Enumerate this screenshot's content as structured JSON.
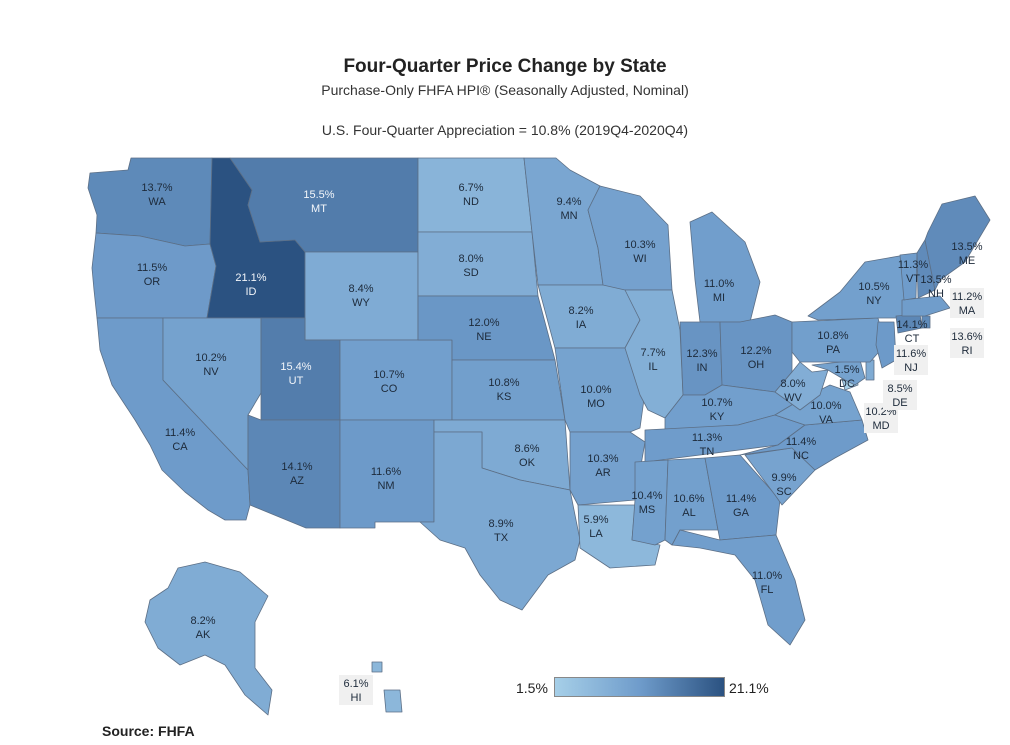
{
  "header": {
    "title": "Four-Quarter Price Change by State",
    "subtitle": "Purchase-Only FHFA HPI® (Seasonally Adjusted, Nominal)",
    "us_appreciation": "U.S. Four-Quarter Appreciation = 10.8% (2019Q4-2020Q4)"
  },
  "legend": {
    "min_label": "1.5%",
    "max_label": "21.1%",
    "min_value": 1.5,
    "max_value": 21.1,
    "colors": [
      "#a6cfe8",
      "#6f9ccb",
      "#2b5281"
    ]
  },
  "source": "Source:  FHFA",
  "states": [
    {
      "abbr": "WA",
      "value": 13.7,
      "label": "13.7%"
    },
    {
      "abbr": "OR",
      "value": 11.5,
      "label": "11.5%"
    },
    {
      "abbr": "CA",
      "value": 11.4,
      "label": "11.4%"
    },
    {
      "abbr": "ID",
      "value": 21.1,
      "label": "21.1%"
    },
    {
      "abbr": "NV",
      "value": 10.2,
      "label": "10.2%"
    },
    {
      "abbr": "MT",
      "value": 15.5,
      "label": "15.5%"
    },
    {
      "abbr": "WY",
      "value": 8.4,
      "label": "8.4%"
    },
    {
      "abbr": "UT",
      "value": 15.4,
      "label": "15.4%"
    },
    {
      "abbr": "AZ",
      "value": 14.1,
      "label": "14.1%"
    },
    {
      "abbr": "CO",
      "value": 10.7,
      "label": "10.7%"
    },
    {
      "abbr": "NM",
      "value": 11.6,
      "label": "11.6%"
    },
    {
      "abbr": "ND",
      "value": 6.7,
      "label": "6.7%"
    },
    {
      "abbr": "SD",
      "value": 8.0,
      "label": "8.0%"
    },
    {
      "abbr": "NE",
      "value": 12.0,
      "label": "12.0%"
    },
    {
      "abbr": "KS",
      "value": 10.8,
      "label": "10.8%"
    },
    {
      "abbr": "OK",
      "value": 8.6,
      "label": "8.6%"
    },
    {
      "abbr": "TX",
      "value": 8.9,
      "label": "8.9%"
    },
    {
      "abbr": "MN",
      "value": 9.4,
      "label": "9.4%"
    },
    {
      "abbr": "IA",
      "value": 8.2,
      "label": "8.2%"
    },
    {
      "abbr": "MO",
      "value": 10.0,
      "label": "10.0%"
    },
    {
      "abbr": "AR",
      "value": 10.3,
      "label": "10.3%"
    },
    {
      "abbr": "LA",
      "value": 5.9,
      "label": "5.9%"
    },
    {
      "abbr": "WI",
      "value": 10.3,
      "label": "10.3%"
    },
    {
      "abbr": "IL",
      "value": 7.7,
      "label": "7.7%"
    },
    {
      "abbr": "MI",
      "value": 11.0,
      "label": "11.0%"
    },
    {
      "abbr": "IN",
      "value": 12.3,
      "label": "12.3%"
    },
    {
      "abbr": "OH",
      "value": 12.2,
      "label": "12.2%"
    },
    {
      "abbr": "KY",
      "value": 10.7,
      "label": "10.7%"
    },
    {
      "abbr": "TN",
      "value": 11.3,
      "label": "11.3%"
    },
    {
      "abbr": "MS",
      "value": 10.4,
      "label": "10.4%"
    },
    {
      "abbr": "AL",
      "value": 10.6,
      "label": "10.6%"
    },
    {
      "abbr": "GA",
      "value": 11.4,
      "label": "11.4%"
    },
    {
      "abbr": "FL",
      "value": 11.0,
      "label": "11.0%"
    },
    {
      "abbr": "SC",
      "value": 9.9,
      "label": "9.9%"
    },
    {
      "abbr": "NC",
      "value": 11.4,
      "label": "11.4%"
    },
    {
      "abbr": "VA",
      "value": 10.0,
      "label": "10.0%"
    },
    {
      "abbr": "WV",
      "value": 8.0,
      "label": "8.0%"
    },
    {
      "abbr": "DC",
      "value": 1.5,
      "label": "1.5%"
    },
    {
      "abbr": "MD",
      "value": 10.2,
      "label": "10.2%"
    },
    {
      "abbr": "DE",
      "value": 8.5,
      "label": "8.5%"
    },
    {
      "abbr": "PA",
      "value": 10.8,
      "label": "10.8%"
    },
    {
      "abbr": "NJ",
      "value": 11.6,
      "label": "11.6%"
    },
    {
      "abbr": "NY",
      "value": 10.5,
      "label": "10.5%"
    },
    {
      "abbr": "CT",
      "value": 14.1,
      "label": "14.1%"
    },
    {
      "abbr": "RI",
      "value": 13.6,
      "label": "13.6%"
    },
    {
      "abbr": "MA",
      "value": 11.2,
      "label": "11.2%"
    },
    {
      "abbr": "VT",
      "value": 11.3,
      "label": "11.3%"
    },
    {
      "abbr": "NH",
      "value": 13.5,
      "label": "13.5%"
    },
    {
      "abbr": "ME",
      "value": 13.5,
      "label": "13.5%"
    },
    {
      "abbr": "AK",
      "value": 8.2,
      "label": "8.2%"
    },
    {
      "abbr": "HI",
      "value": 6.1,
      "label": "6.1%"
    }
  ]
}
